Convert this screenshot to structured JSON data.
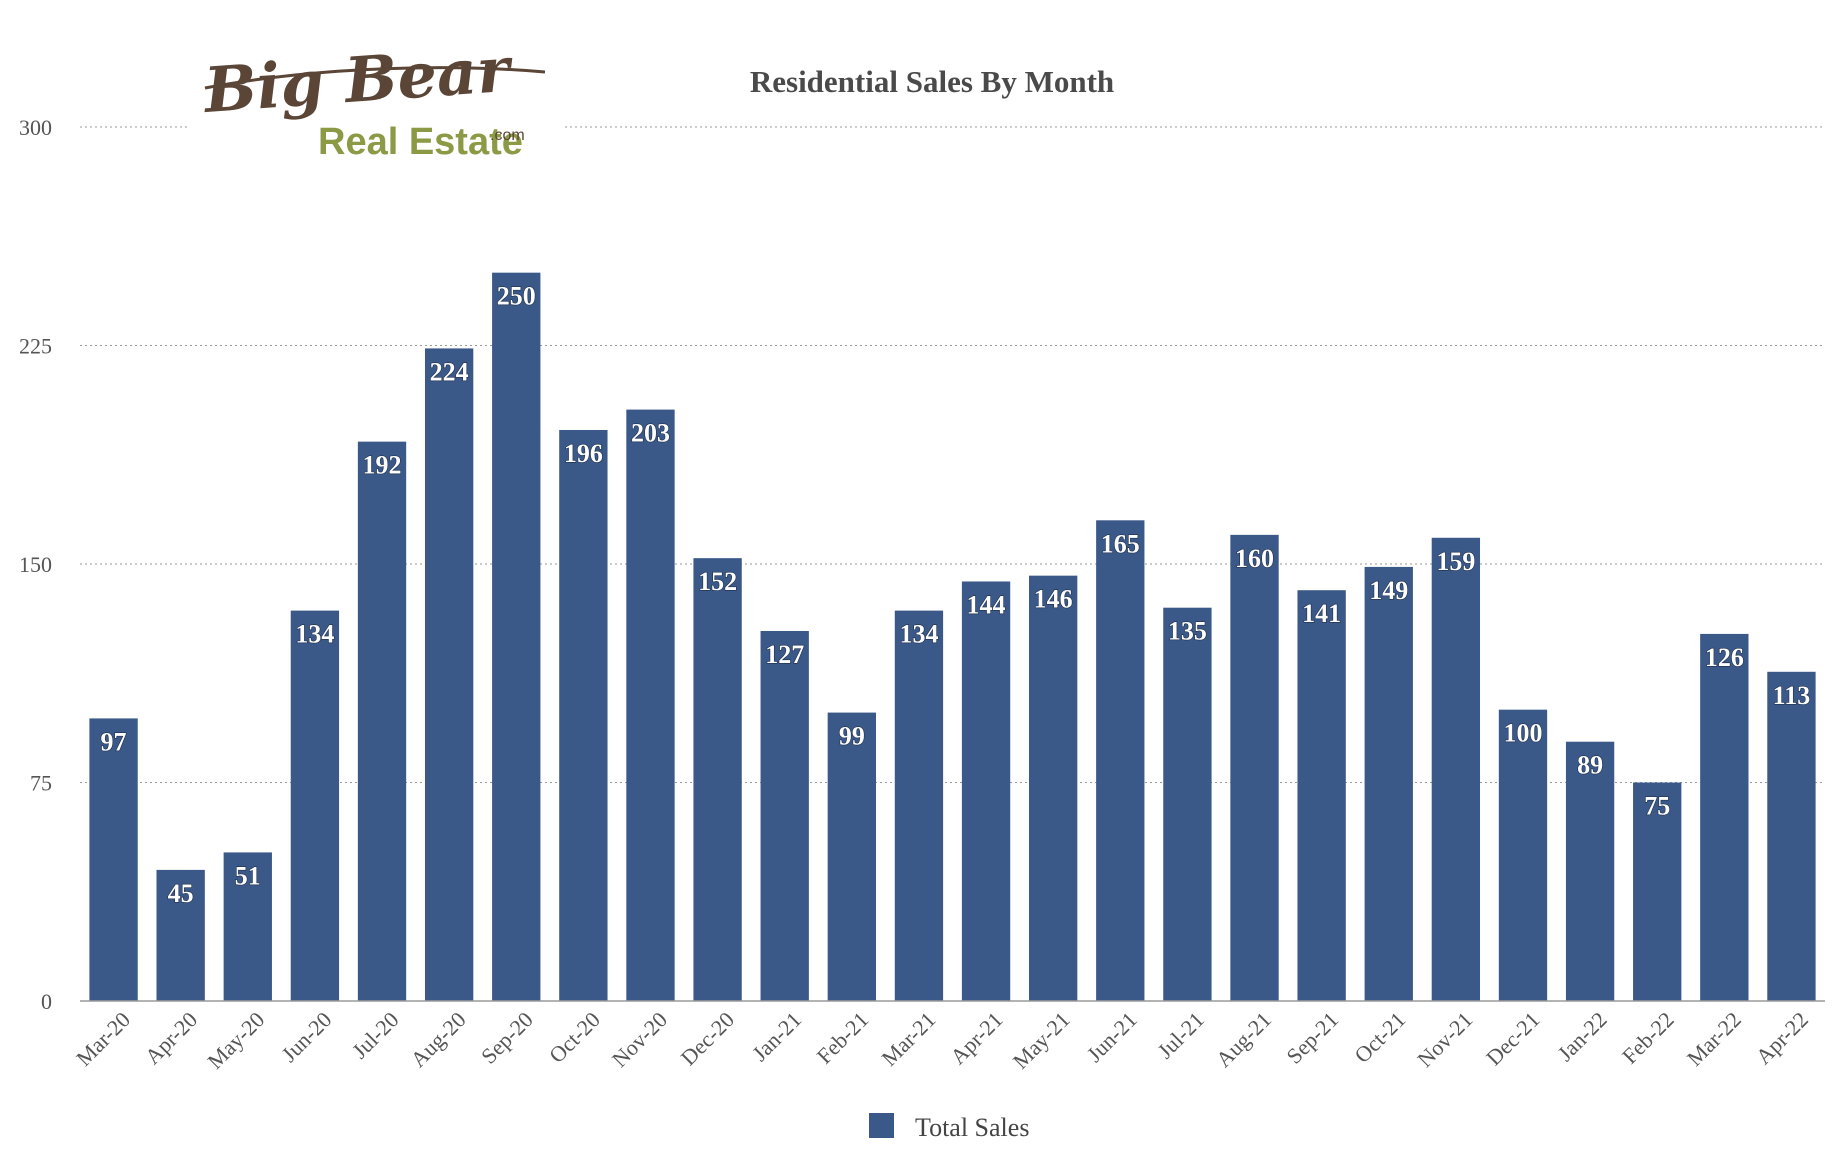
{
  "logo": {
    "line1": "Big Bear",
    "line2": "Real Estate",
    "suffix": ".com"
  },
  "colors": {
    "bar": "#3a5888",
    "grid": "#9a9a9a",
    "axis": "#9a9a9a"
  },
  "chart_data": {
    "type": "bar",
    "title": "Residential Sales By Month",
    "xlabel": "",
    "ylabel": "",
    "ylim": [
      0,
      300
    ],
    "yticks": [
      0,
      75,
      150,
      225,
      300
    ],
    "grid": true,
    "legend_position": "bottom-center",
    "categories": [
      "Mar-20",
      "Apr-20",
      "May-20",
      "Jun-20",
      "Jul-20",
      "Aug-20",
      "Sep-20",
      "Oct-20",
      "Nov-20",
      "Dec-20",
      "Jan-21",
      "Feb-21",
      "Mar-21",
      "Apr-21",
      "May-21",
      "Jun-21",
      "Jul-21",
      "Aug-21",
      "Sep-21",
      "Oct-21",
      "Nov-21",
      "Dec-21",
      "Jan-22",
      "Feb-22",
      "Mar-22",
      "Apr-22"
    ],
    "series": [
      {
        "name": "Total Sales",
        "values": [
          97,
          45,
          51,
          134,
          192,
          224,
          250,
          196,
          203,
          152,
          127,
          99,
          134,
          144,
          146,
          165,
          135,
          160,
          141,
          149,
          159,
          100,
          89,
          75,
          126,
          113
        ]
      }
    ]
  }
}
